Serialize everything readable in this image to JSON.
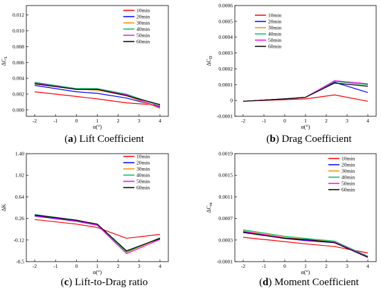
{
  "chart_data": [
    {
      "type": "line",
      "caption_letter": "a",
      "caption_text": "Lift Coefficient",
      "xlabel": "α(°)",
      "ylabel": "ΔC_L",
      "xlim": [
        -2.4,
        4.4
      ],
      "ylim": [
        -0.0008,
        0.0132
      ],
      "x": [
        -2,
        -1,
        0,
        1,
        2,
        3,
        4
      ],
      "xticks": [
        "-2",
        "-1",
        "0",
        "1",
        "2",
        "3",
        "4"
      ],
      "yticks": [
        {
          "v": 0.0,
          "label": "0.000"
        },
        {
          "v": 0.002,
          "label": "0.002"
        },
        {
          "v": 0.004,
          "label": "0.004"
        },
        {
          "v": 0.006,
          "label": "0.006"
        },
        {
          "v": 0.008,
          "label": "0.008"
        },
        {
          "v": 0.01,
          "label": "0.010"
        },
        {
          "v": 0.012,
          "label": "0.012"
        }
      ],
      "legend_position": "top-right",
      "series": [
        {
          "name": "10min",
          "color": "#ff0000",
          "points": [
            [
              -2,
              0.0023
            ],
            [
              0,
              0.0017
            ],
            [
              1,
              0.0014
            ],
            [
              2.4,
              0.0009
            ],
            [
              4,
              0.0006
            ]
          ]
        },
        {
          "name": "20min",
          "color": "#0000ff",
          "points": [
            [
              -2,
              0.0031
            ],
            [
              0,
              0.0023
            ],
            [
              1,
              0.0021
            ],
            [
              2.4,
              0.0015
            ],
            [
              4,
              0.0004
            ]
          ]
        },
        {
          "name": "30min",
          "color": "#ff8c00",
          "points": [
            [
              -2,
              0.0033
            ],
            [
              0,
              0.0026
            ],
            [
              1,
              0.0025
            ],
            [
              2.4,
              0.0018
            ],
            [
              4,
              0.0002
            ]
          ]
        },
        {
          "name": "40min",
          "color": "#00c060",
          "points": [
            [
              -2,
              0.0035
            ],
            [
              0,
              0.0027
            ],
            [
              1,
              0.0027
            ],
            [
              2.4,
              0.002
            ],
            [
              4,
              0.0005
            ]
          ]
        },
        {
          "name": "50min",
          "color": "#ff00ff",
          "points": [
            [
              -2,
              0.0034
            ],
            [
              0,
              0.0026
            ],
            [
              1,
              0.0026
            ],
            [
              2.4,
              0.0019
            ],
            [
              4,
              0.0003
            ]
          ]
        },
        {
          "name": "60min",
          "color": "#000000",
          "points": [
            [
              -2,
              0.0033
            ],
            [
              0,
              0.0026
            ],
            [
              1,
              0.0026
            ],
            [
              2.4,
              0.0018
            ],
            [
              4,
              0.0007
            ]
          ]
        }
      ]
    },
    {
      "type": "line",
      "caption_letter": "b",
      "caption_text": "Drag Coefficient",
      "xlabel": "α(°)",
      "ylabel": "ΔC_D",
      "xlim": [
        -2.4,
        4.4
      ],
      "ylim": [
        -0.0001,
        0.0006
      ],
      "x": [
        -2,
        -1,
        0,
        1,
        2,
        3,
        4
      ],
      "xticks": [
        "-2",
        "-1",
        "0",
        "1",
        "2",
        "3",
        "4"
      ],
      "yticks": [
        {
          "v": -0.0001,
          "label": "-0.0001"
        },
        {
          "v": 0.0,
          "label": "0"
        },
        {
          "v": 0.0001,
          "label": "0.0001"
        },
        {
          "v": 0.0002,
          "label": "0.0002"
        },
        {
          "v": 0.0003,
          "label": "0.0003"
        },
        {
          "v": 0.0004,
          "label": "0.0004"
        },
        {
          "v": 0.0005,
          "label": "0.0005"
        },
        {
          "v": 0.0006,
          "label": "0.0006"
        }
      ],
      "legend_position": "top-left",
      "series": [
        {
          "name": "10min",
          "color": "#ff0000",
          "points": [
            [
              -2,
              -5e-06
            ],
            [
              0,
              5e-06
            ],
            [
              1,
              1e-05
            ],
            [
              2.4,
              3.5e-05
            ],
            [
              4,
              -5e-06
            ]
          ]
        },
        {
          "name": "20min",
          "color": "#0000ff",
          "points": [
            [
              -2,
              -5e-06
            ],
            [
              0,
              1e-05
            ],
            [
              1,
              2e-05
            ],
            [
              2.4,
              0.000115
            ],
            [
              4,
              5e-05
            ]
          ]
        },
        {
          "name": "30min",
          "color": "#ff8c00",
          "points": [
            [
              -2,
              -5e-06
            ],
            [
              0,
              1e-05
            ],
            [
              1,
              2e-05
            ],
            [
              2.4,
              0.00012
            ],
            [
              4,
              0.0001
            ]
          ]
        },
        {
          "name": "40min",
          "color": "#00c060",
          "points": [
            [
              -2,
              -5e-06
            ],
            [
              0,
              1e-05
            ],
            [
              1,
              2e-05
            ],
            [
              2.4,
              0.00012
            ],
            [
              4,
              0.0001
            ]
          ]
        },
        {
          "name": "50min",
          "color": "#ff00ff",
          "points": [
            [
              -2,
              -5e-06
            ],
            [
              0,
              1e-05
            ],
            [
              1,
              2e-05
            ],
            [
              2.4,
              0.000125
            ],
            [
              4,
              0.000105
            ]
          ]
        },
        {
          "name": "60min",
          "color": "#000000",
          "points": [
            [
              -2,
              -5e-06
            ],
            [
              0,
              1e-05
            ],
            [
              1,
              2e-05
            ],
            [
              2.4,
              0.00011
            ],
            [
              4,
              9e-05
            ]
          ]
        }
      ]
    },
    {
      "type": "line",
      "caption_letter": "c",
      "caption_text": "Lift-to-Drag ratio",
      "xlabel": "α(°)",
      "ylabel": "ΔK",
      "xlim": [
        -2.4,
        4.4
      ],
      "ylim": [
        -0.5,
        1.4
      ],
      "x": [
        -2,
        -1,
        0,
        1,
        2,
        3,
        4
      ],
      "xticks": [
        "-2",
        "-1",
        "0",
        "1",
        "2",
        "3",
        "4"
      ],
      "yticks": [
        {
          "v": -0.5,
          "label": "-0.5"
        },
        {
          "v": -0.12,
          "label": "-0.12"
        },
        {
          "v": 0.26,
          "label": "0.26"
        },
        {
          "v": 0.64,
          "label": "0.64"
        },
        {
          "v": 1.02,
          "label": "1.02"
        },
        {
          "v": 1.4,
          "label": "1.40"
        }
      ],
      "legend_position": "top-right",
      "series": [
        {
          "name": "10min",
          "color": "#ff0000",
          "points": [
            [
              -2,
              0.24
            ],
            [
              0,
              0.16
            ],
            [
              1,
              0.1
            ],
            [
              2.4,
              -0.09
            ],
            [
              4,
              -0.02
            ]
          ]
        },
        {
          "name": "20min",
          "color": "#0000ff",
          "points": [
            [
              -2,
              0.3
            ],
            [
              0,
              0.21
            ],
            [
              1,
              0.14
            ],
            [
              2.4,
              -0.31
            ],
            [
              4,
              -0.1
            ]
          ]
        },
        {
          "name": "30min",
          "color": "#ff8c00",
          "points": [
            [
              -2,
              0.32
            ],
            [
              0,
              0.22
            ],
            [
              1,
              0.15
            ],
            [
              2.4,
              -0.34
            ],
            [
              4,
              -0.09
            ]
          ]
        },
        {
          "name": "40min",
          "color": "#00c060",
          "points": [
            [
              -2,
              0.33
            ],
            [
              0,
              0.23
            ],
            [
              1,
              0.15
            ],
            [
              2.4,
              -0.33
            ],
            [
              4,
              -0.08
            ]
          ]
        },
        {
          "name": "50min",
          "color": "#ff00ff",
          "points": [
            [
              -2,
              0.31
            ],
            [
              0,
              0.22
            ],
            [
              1,
              0.14
            ],
            [
              2.4,
              -0.36
            ],
            [
              4,
              -0.11
            ]
          ]
        },
        {
          "name": "60min",
          "color": "#000000",
          "points": [
            [
              -2,
              0.32
            ],
            [
              0,
              0.23
            ],
            [
              1,
              0.16
            ],
            [
              2.4,
              -0.31
            ],
            [
              4,
              -0.09
            ]
          ]
        }
      ]
    },
    {
      "type": "line",
      "caption_letter": "d",
      "caption_text": "Moment Coefficient",
      "xlabel": "α(°)",
      "ylabel": "ΔC_m",
      "xlim": [
        -2.4,
        4.4
      ],
      "ylim": [
        -0.0001,
        0.0019
      ],
      "x": [
        -2,
        -1,
        0,
        1,
        2,
        3,
        4
      ],
      "xticks": [
        "-2",
        "-1",
        "0",
        "1",
        "2",
        "3",
        "4"
      ],
      "yticks": [
        {
          "v": -0.0001,
          "label": "-0.0001"
        },
        {
          "v": 0.0003,
          "label": "0.0003"
        },
        {
          "v": 0.0007,
          "label": "0.0007"
        },
        {
          "v": 0.0011,
          "label": "0.0011"
        },
        {
          "v": 0.0015,
          "label": "0.0015"
        },
        {
          "v": 0.0019,
          "label": "0.0019"
        }
      ],
      "legend_position": "top-right",
      "series": [
        {
          "name": "10min",
          "color": "#ff0000",
          "points": [
            [
              -2,
              0.00035
            ],
            [
              0,
              0.00027
            ],
            [
              1,
              0.00023
            ],
            [
              2.4,
              0.00018
            ],
            [
              4,
              6e-05
            ]
          ]
        },
        {
          "name": "20min",
          "color": "#0000ff",
          "points": [
            [
              -2,
              0.00045
            ],
            [
              0,
              0.00033
            ],
            [
              1,
              0.00029
            ],
            [
              2.4,
              0.00025
            ],
            [
              4,
              -1e-05
            ]
          ]
        },
        {
          "name": "30min",
          "color": "#ff8c00",
          "points": [
            [
              -2,
              0.00047
            ],
            [
              0,
              0.00035
            ],
            [
              1,
              0.00031
            ],
            [
              2.4,
              0.00027
            ],
            [
              4,
              0.0
            ]
          ]
        },
        {
          "name": "40min",
          "color": "#00c060",
          "points": [
            [
              -2,
              0.00049
            ],
            [
              0,
              0.00037
            ],
            [
              1,
              0.00033
            ],
            [
              2.4,
              0.00028
            ],
            [
              4,
              0.0
            ]
          ]
        },
        {
          "name": "50min",
          "color": "#ff00ff",
          "points": [
            [
              -2,
              0.00046
            ],
            [
              0,
              0.00034
            ],
            [
              1,
              0.0003
            ],
            [
              2.4,
              0.00026
            ],
            [
              4,
              -1e-05
            ]
          ]
        },
        {
          "name": "60min",
          "color": "#000000",
          "points": [
            [
              -2,
              0.00044
            ],
            [
              0,
              0.00033
            ],
            [
              1,
              0.00031
            ],
            [
              2.4,
              0.00025
            ],
            [
              4,
              -2e-05
            ]
          ]
        }
      ]
    }
  ]
}
